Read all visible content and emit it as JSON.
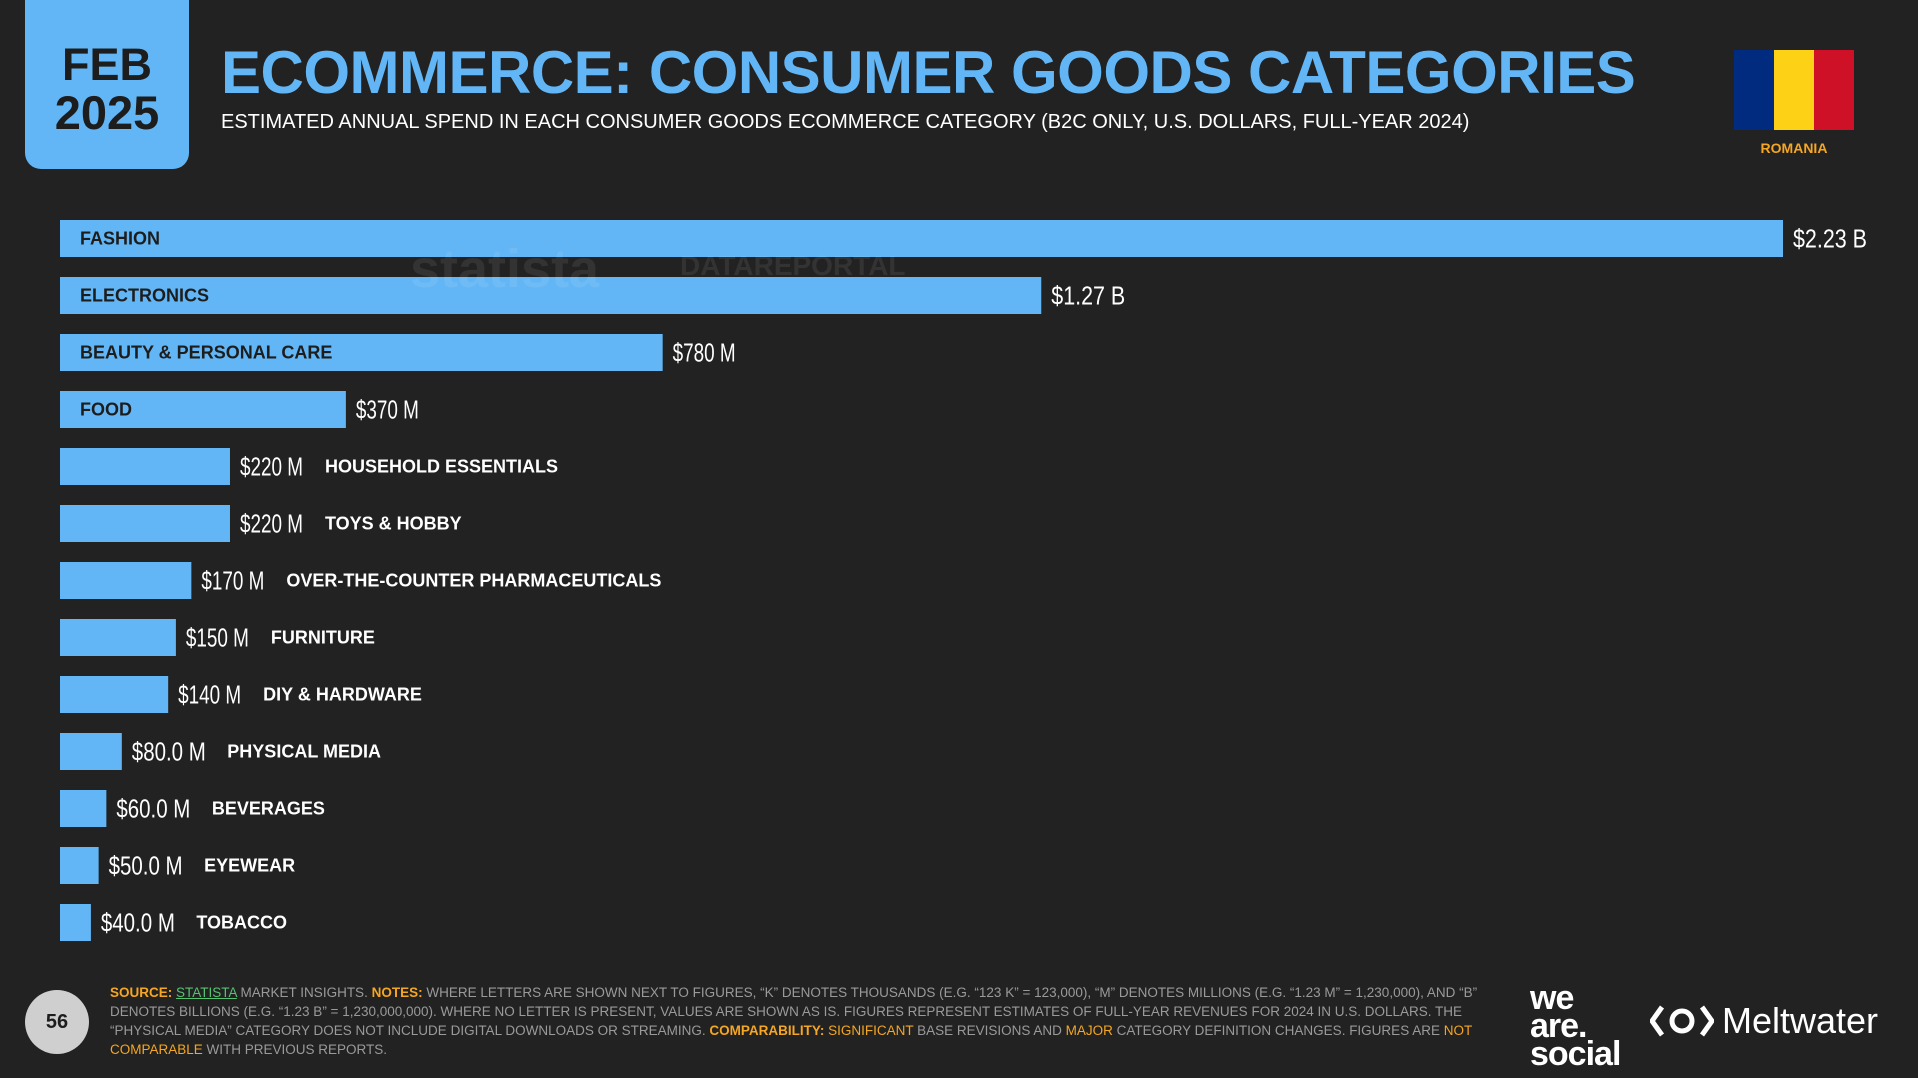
{
  "header": {
    "month": "FEB",
    "year": "2025",
    "title": "ECOMMERCE: CONSUMER GOODS CATEGORIES",
    "subtitle": "ESTIMATED ANNUAL SPEND IN EACH CONSUMER GOODS ECOMMERCE CATEGORY (B2C ONLY, U.S. DOLLARS, FULL-YEAR 2024)",
    "country": "ROMANIA",
    "flag_colors": [
      "#002b7f",
      "#fcd116",
      "#ce1126"
    ]
  },
  "watermarks": {
    "statista": "statista",
    "datareportal": "DATAREPORTAL"
  },
  "colors": {
    "bar": "#62b6f6",
    "background": "#222222",
    "accent": "#f5a623"
  },
  "chart_data": {
    "type": "bar",
    "orientation": "horizontal",
    "unit": "USD",
    "categories": [
      "FASHION",
      "ELECTRONICS",
      "BEAUTY & PERSONAL CARE",
      "FOOD",
      "HOUSEHOLD ESSENTIALS",
      "TOYS & HOBBY",
      "OVER-THE-COUNTER PHARMACEUTICALS",
      "FURNITURE",
      "DIY & HARDWARE",
      "PHYSICAL MEDIA",
      "BEVERAGES",
      "EYEWEAR",
      "TOBACCO"
    ],
    "values": [
      2230000000,
      1270000000,
      780000000,
      370000000,
      220000000,
      220000000,
      170000000,
      150000000,
      140000000,
      80000000,
      60000000,
      50000000,
      40000000
    ],
    "value_labels": [
      "$2.23 B",
      "$1.27 B",
      "$780 M",
      "$370 M",
      "$220 M",
      "$220 M",
      "$170 M",
      "$150 M",
      "$140 M",
      "$80.0 M",
      "$60.0 M",
      "$50.0 M",
      "$40.0 M"
    ],
    "xlim": [
      0,
      2230000000
    ]
  },
  "footer": {
    "source_label": "SOURCE:",
    "source_name": "STATISTA",
    "source_rest": " MARKET INSIGHTS. ",
    "notes_label": "NOTES:",
    "notes_text": " WHERE LETTERS ARE SHOWN NEXT TO FIGURES, “K” DENOTES THOUSANDS (E.G. “123 K” = 123,000), “M” DENOTES MILLIONS (E.G. “1.23 M” = 1,230,000), AND “B” DENOTES BILLIONS (E.G. “1.23 B” = 1,230,000,000). WHERE NO LETTER IS PRESENT, VALUES ARE SHOWN AS IS. FIGURES REPRESENT ESTIMATES OF FULL-YEAR REVENUES FOR 2024 IN U.S. DOLLARS. THE “PHYSICAL MEDIA” CATEGORY DOES NOT INCLUDE DIGITAL DOWNLOADS OR STREAMING. ",
    "comparability_label": "COMPARABILITY:",
    "comp_1": " SIGNIFICANT",
    "comp_2": " BASE REVISIONS AND ",
    "comp_3": "MAJOR",
    "comp_4": " CATEGORY DEFINITION CHANGES. FIGURES ARE ",
    "comp_5": "NOT COMPARABLE",
    "comp_6": " WITH PREVIOUS REPORTS."
  },
  "page_number": "56",
  "logos": {
    "was_1": "we",
    "was_2": "are.",
    "was_3": "social",
    "meltwater": "Meltwater"
  }
}
